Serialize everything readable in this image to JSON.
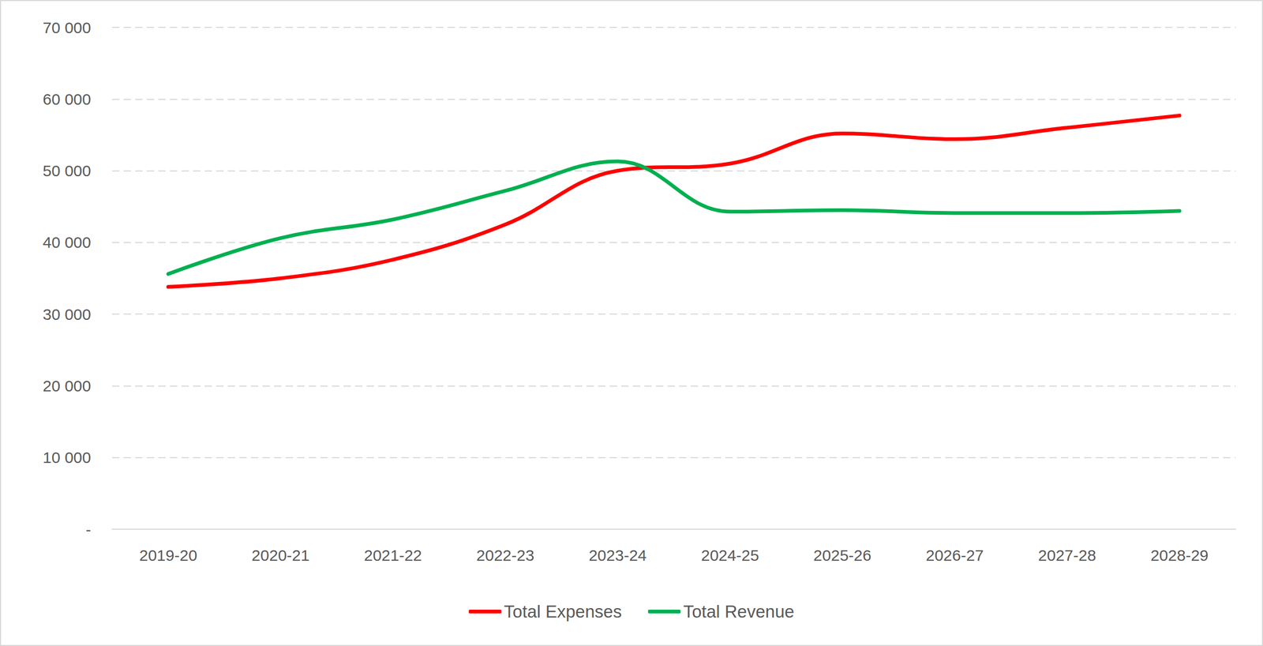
{
  "chart_data": {
    "type": "line",
    "categories": [
      "2019-20",
      "2020-21",
      "2021-22",
      "2022-23",
      "2023-24",
      "2024-25",
      "2025-26",
      "2026-27",
      "2027-28",
      "2028-29"
    ],
    "series": [
      {
        "name": "Total Expenses",
        "color": "#ff0000",
        "marker": "none",
        "line_style": "solid",
        "values": [
          33800,
          35000,
          37600,
          42500,
          50000,
          51000,
          55200,
          54400,
          56000,
          57700
        ]
      },
      {
        "name": "Total Revenue",
        "color": "#00b050",
        "marker": "none",
        "line_style": "solid",
        "values": [
          35600,
          40600,
          43200,
          47200,
          51300,
          44300,
          44500,
          44100,
          44100,
          44400
        ]
      }
    ],
    "ylim": [
      0,
      70000
    ],
    "yticks": [
      {
        "value": 0,
        "label": "-"
      },
      {
        "value": 10000,
        "label": "10 000"
      },
      {
        "value": 20000,
        "label": "20 000"
      },
      {
        "value": 30000,
        "label": "30 000"
      },
      {
        "value": 40000,
        "label": "40 000"
      },
      {
        "value": 50000,
        "label": "50 000"
      },
      {
        "value": 60000,
        "label": "60 000"
      },
      {
        "value": 70000,
        "label": "70 000"
      }
    ],
    "grid": true,
    "legend": "bottom"
  }
}
